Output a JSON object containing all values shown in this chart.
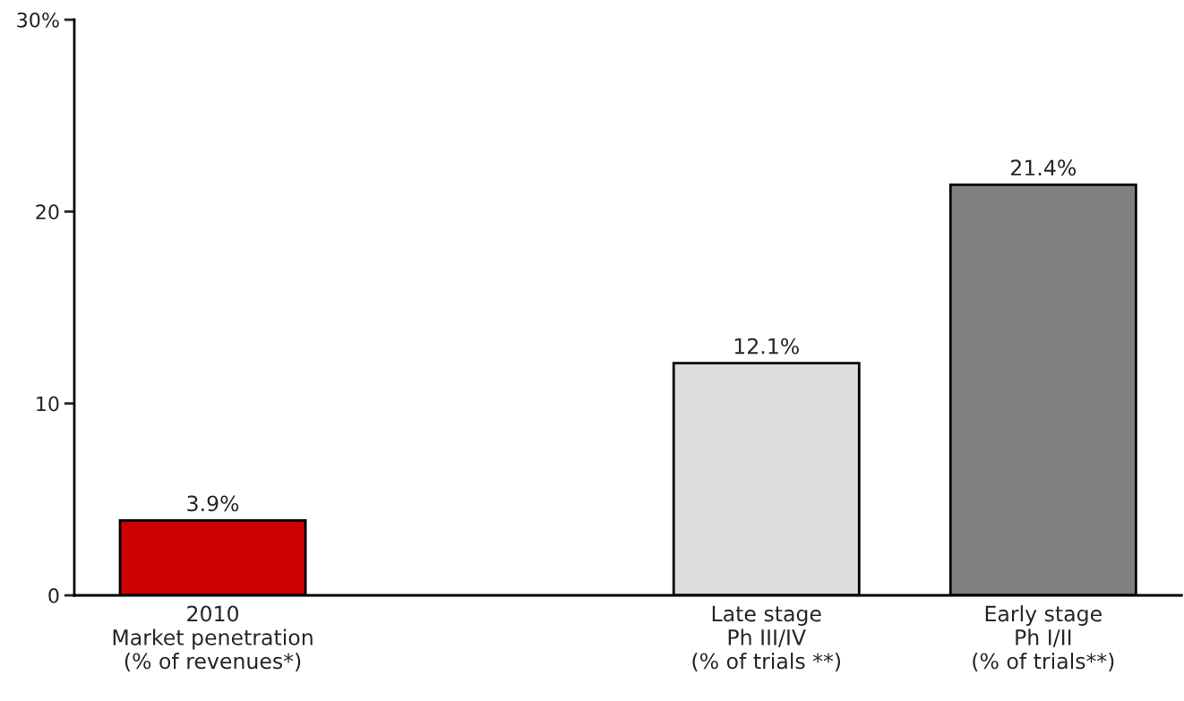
{
  "chart_data": {
    "type": "bar",
    "categories": [
      "2010\nMarket penetration\n(% of revenues*)",
      null,
      "Late stage\nPh III/IV\n(% of trials **)",
      "Early stage\nPh I/II\n(% of trials**)"
    ],
    "values": [
      3.9,
      null,
      12.1,
      21.4
    ],
    "colors": [
      "#cc0000",
      "#dcdcdc",
      "#dcdcdc",
      "#808080"
    ],
    "value_labels": [
      "3.9%",
      null,
      "12.1%",
      "21.4%"
    ],
    "ylim": [
      0,
      30
    ],
    "yticks": [
      0,
      10,
      20,
      {
        "value": 30,
        "label": "30%"
      }
    ],
    "grid": false,
    "legend": false
  }
}
